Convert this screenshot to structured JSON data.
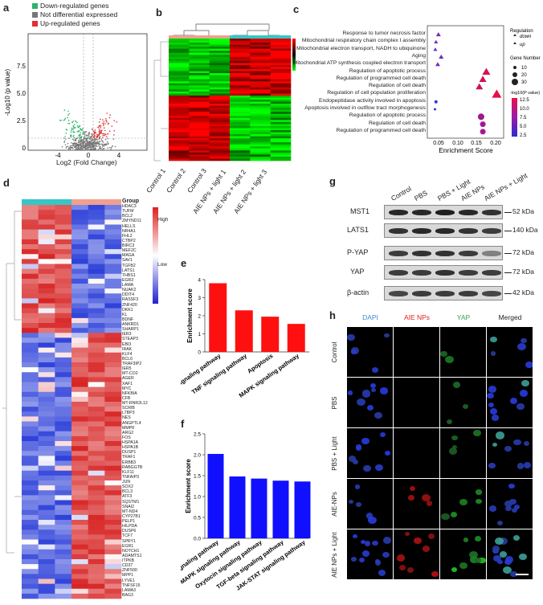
{
  "panels": {
    "a": "a",
    "b": "b",
    "c": "c",
    "d": "d",
    "e": "e",
    "f": "f",
    "g": "g",
    "h": "h"
  },
  "volcano": {
    "legend": [
      {
        "label": "Down-regulated genes",
        "color": "#2db36a"
      },
      {
        "label": "Not differential expressed",
        "color": "#777777"
      },
      {
        "label": "Up-regulated genes",
        "color": "#e03030"
      }
    ],
    "xlabel": "Log2 (Fold Change)",
    "ylabel": "-Log10 (p value)",
    "xticks": [
      "-4",
      "0",
      "4"
    ],
    "yticks": [
      "0",
      "2.5",
      "5.0",
      "7.5"
    ]
  },
  "heatmap_b": {
    "columns": [
      "Control 1",
      "Control 2",
      "Control 3",
      "AIE NPs + light 1",
      "AIE NPs + light 2",
      "AIE NPs + light 3"
    ]
  },
  "go": {
    "terms": [
      "Response to tumor necrosis factor",
      "Mitochondrial respiratory chain complex I assembly",
      "Mitochondrial electron transport, NADH to ubiquinone",
      "Aging",
      "Mitochondrial ATP synthesis coupled electron transport",
      "Regulation of apoptotic process",
      "Regulation of programmed cell death",
      "Regulation of cell death",
      "Regulation of cell population proliferation",
      "Endopeptidase activity involved in apoptosis",
      "Apoptosis involved in outflow tract morphogenesis",
      "Regulation of apoptotic process",
      "Regulation of cell death",
      "Regulation of programmed cell death"
    ],
    "xlabel": "Enrichment Score",
    "xticks": [
      "0.05",
      "0.10",
      "0.15",
      "0.20"
    ],
    "legend_regulation_title": "Regulation",
    "legend_regulation": [
      "down",
      "up"
    ],
    "legend_gene_title": "Gene Number",
    "legend_gene": [
      "10",
      "20",
      "30"
    ],
    "legend_p_title": "-log10(P value)",
    "legend_p": [
      "12.5",
      "10.0",
      "7.5",
      "5.0",
      "2.5"
    ]
  },
  "heatmap_d": {
    "group_label": "Group",
    "scale_high": "High",
    "scale_low": "Low",
    "genes_top": [
      "HDAC3",
      "TUFM",
      "BCL2",
      "ZMYND11",
      "HELLS",
      "NR4A1",
      "FHL2",
      "CTBP2",
      "BIRC3",
      "MEF2C",
      "MAGA",
      "SAV1",
      "TGFB2",
      "LATS1",
      "THBS1",
      "EGR3",
      "LAMA",
      "NUAK2",
      "DDIT4",
      "RASSF3",
      "ZNF420",
      "DKK1",
      "KL",
      "BDNF",
      "ANKRD1",
      "SHARP1"
    ],
    "genes_bottom": [
      "IER3",
      "STEAP3",
      "EBI3",
      "IRAK",
      "KLF4",
      "BCL6",
      "TRAF3IP2",
      "IER5",
      "MT-CO2",
      "AGER",
      "XAF1",
      "MYC",
      "NFKBIA",
      "CFB",
      "MT-RNR2L12",
      "SCRIB",
      "LTBP3",
      "NES",
      "ANGPTL4",
      "MMP8",
      "ARG2",
      "FOS",
      "HSPA1A",
      "HSPA1B",
      "DUSP1",
      "TRAF1",
      "ERBB3",
      "RABGGTB",
      "KLF11",
      "TNFAIP3",
      "JUN",
      "SOX2",
      "BCL3",
      "ATF3",
      "SQSTM1",
      "SNAI2",
      "MT-ND4",
      "CYP27B1",
      "PELP1",
      "HILPDA",
      "DUSP6",
      "TCF7",
      "SPRY1",
      "EGR1",
      "NOTCH1",
      "ADAMTS1",
      "ITPKB",
      "CD37",
      "ZNF500",
      "MPP1",
      "LYVE1",
      "TNFSF15",
      "LAMA3",
      "BAG3"
    ]
  },
  "chart_data": [
    {
      "type": "bar",
      "title": "",
      "categories": [
        "Hippo signaling pathway",
        "TNF signaling pathway",
        "Apoptosis",
        "MAPK signaling pathway"
      ],
      "values": [
        3.8,
        2.3,
        1.95,
        1.55
      ],
      "ylabel": "Enrichment score",
      "xlabel": "",
      "ylim": [
        0,
        4
      ],
      "yticks": [
        "0",
        "1",
        "2",
        "3",
        "4"
      ],
      "color": "#ff1010"
    },
    {
      "type": "bar",
      "title": "",
      "categories": [
        "Hippo signaling pathway",
        "MAPK signaling pathway",
        "Oxytocin signaling pathway",
        "TGF-beta signaling pathway",
        "JAK-STAT signaling pathway"
      ],
      "values": [
        2.02,
        1.48,
        1.43,
        1.38,
        1.36
      ],
      "ylabel": "Enrichment score",
      "xlabel": "",
      "ylim": [
        0,
        2.5
      ],
      "yticks": [
        "0.0",
        "0.5",
        "1.0",
        "1.5",
        "2.0",
        "2.5"
      ],
      "color": "#1010ff"
    }
  ],
  "western": {
    "lanes": [
      "Control",
      "PBS",
      "PBS + Light",
      "AIE NPs",
      "AIE NPs + Light"
    ],
    "proteins": [
      {
        "name": "MST1",
        "size": "52 kDa"
      },
      {
        "name": "LATS1",
        "size": "140 kDa"
      },
      {
        "name": "P-YAP",
        "size": "72 kDa"
      },
      {
        "name": "YAP",
        "size": "72 kDa"
      },
      {
        "name": "β-actin",
        "size": "42 kDa"
      }
    ]
  },
  "microscopy": {
    "channels": [
      "DAPI",
      "AIE NPs",
      "YAP",
      "Merged"
    ],
    "channel_colors": [
      "#3b8ad9",
      "#e02020",
      "#2aa84a",
      "#222222"
    ],
    "conditions": [
      "Control",
      "PBS",
      "PBS + Light",
      "AIE-NPs",
      "AIE NPs + Light"
    ]
  }
}
